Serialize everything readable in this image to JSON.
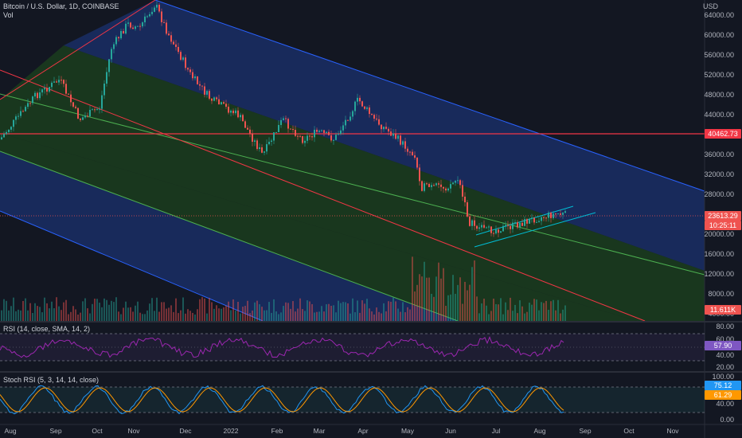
{
  "header": {
    "title": "Bitcoin / U.S. Dollar, 1D, COINBASE",
    "vol_label": "Vol",
    "currency": "USD"
  },
  "price_axis": {
    "labels": [
      "64000.00",
      "60000.00",
      "56000.00",
      "52000.00",
      "48000.00",
      "44000.00",
      "36000.00",
      "32000.00",
      "28000.00",
      "20000.00",
      "16000.00",
      "12000.00",
      "8000.00",
      "4000.00"
    ]
  },
  "tags": {
    "resistance": "40462.73",
    "last_price": "23613.29",
    "countdown": "10:25:11",
    "volume": "11.611K",
    "rsi_value": "57.90",
    "stoch_k": "75.12",
    "stoch_d": "61.29"
  },
  "rsi": {
    "label": "RSI (14, close, SMA, 14, 2)",
    "axis": [
      "80.00",
      "60.00",
      "40.00",
      "20.00"
    ]
  },
  "stoch": {
    "label": "Stoch RSI (5, 3, 14, 14, close)",
    "axis": [
      "100.00",
      "40.00",
      "0.00"
    ]
  },
  "time_axis": [
    "Aug",
    "Sep",
    "Oct",
    "Nov",
    "Dec",
    "2022",
    "Feb",
    "Mar",
    "Apr",
    "May",
    "Jun",
    "Jul",
    "Aug",
    "Sep",
    "Oct",
    "Nov"
  ],
  "colors": {
    "background": "#131722",
    "up": "#26a69a",
    "down": "#ef5350",
    "channel_blue": "#1e3a8a",
    "channel_green": "#1b3d1d",
    "resistance": "#f23645",
    "rsi_line": "#9c27b0",
    "stoch_k": "#2196f3",
    "stoch_d": "#ff9800"
  }
}
